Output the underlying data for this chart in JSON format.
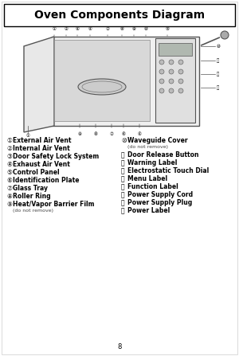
{
  "title": "Oven Components Diagram",
  "bg_color": "#ffffff",
  "border_color": "#000000",
  "title_fontsize": 10,
  "body_fontsize": 5.5,
  "small_fontsize": 4.5,
  "left_items": [
    {
      "num": "①",
      "text": "External Air Vent"
    },
    {
      "num": "②",
      "text": "Internal Air Vent"
    },
    {
      "num": "③",
      "text": "Door Safety Lock System"
    },
    {
      "num": "④",
      "text": "Exhaust Air Vent"
    },
    {
      "num": "⑤",
      "text": "Control Panel"
    },
    {
      "num": "⑥",
      "text": "Identification Plate"
    },
    {
      "num": "⑦",
      "text": "Glass Tray"
    },
    {
      "num": "⑧",
      "text": "Roller Ring"
    },
    {
      "num": "⑨",
      "text": "Heat/Vapor Barrier Film",
      "sub": "(do not remove)"
    }
  ],
  "right_items": [
    {
      "num": "⑩",
      "text": "Waveguide Cover",
      "sub": "(do not remove)"
    },
    {
      "num": "⑪",
      "text": "Door Release Button"
    },
    {
      "num": "⑫",
      "text": "Warning Label"
    },
    {
      "num": "⑬",
      "text": "Electrostatic Touch Dial"
    },
    {
      "num": "⑭",
      "text": "Menu Label"
    },
    {
      "num": "⑮",
      "text": "Function Label"
    },
    {
      "num": "⑯",
      "text": "Power Supply Cord"
    },
    {
      "num": "⑰",
      "text": "Power Supply Plug"
    },
    {
      "num": "⑱",
      "text": "Power Label"
    }
  ],
  "page_num": "8"
}
